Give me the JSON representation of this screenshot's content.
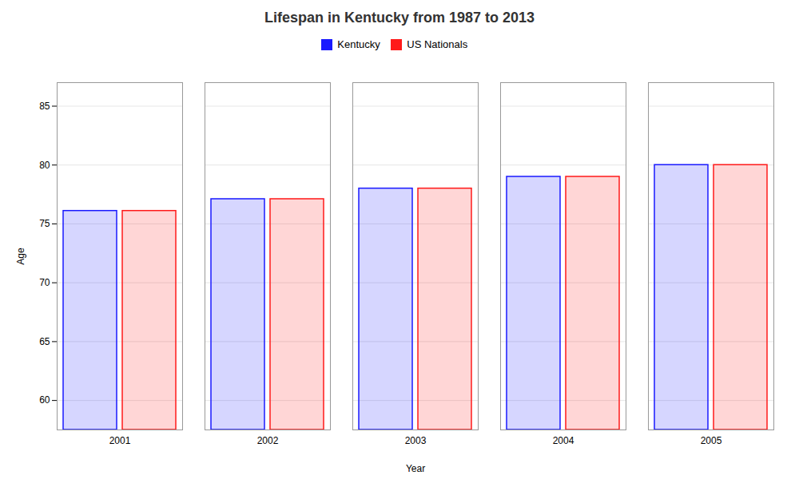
{
  "chart_data": {
    "type": "bar",
    "title": "Lifespan in Kentucky from 1987 to 2013",
    "xlabel": "Year",
    "ylabel": "Age",
    "categories": [
      "2001",
      "2002",
      "2003",
      "2004",
      "2005"
    ],
    "series": [
      {
        "name": "Kentucky",
        "color": "#1a1aff",
        "values": [
          76.1,
          77.1,
          78.0,
          79.0,
          80.0
        ]
      },
      {
        "name": "US Nationals",
        "color": "#ff1a1a",
        "values": [
          76.1,
          77.1,
          78.0,
          79.0,
          80.0
        ]
      }
    ],
    "ylim": [
      57.5,
      87
    ],
    "yticks": [
      60,
      65,
      70,
      75,
      80,
      85
    ],
    "grid": true,
    "legend": "top"
  }
}
